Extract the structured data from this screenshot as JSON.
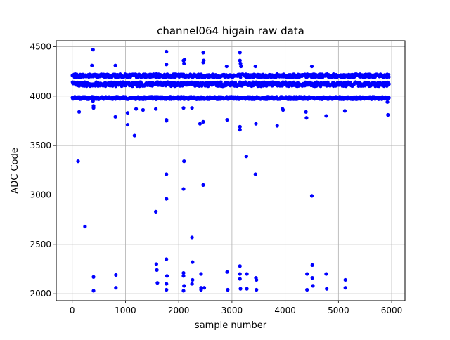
{
  "chart_data": {
    "type": "scatter",
    "title": "channel064 higain raw data",
    "xlabel": "sample number",
    "ylabel": "ADC Code",
    "xlim": [
      -300,
      6250
    ],
    "ylim": [
      1930,
      4560
    ],
    "xticks": [
      0,
      1000,
      2000,
      3000,
      4000,
      5000,
      6000
    ],
    "xtick_labels": [
      "0",
      "1000",
      "2000",
      "3000",
      "4000",
      "5000",
      "6000"
    ],
    "yticks": [
      2000,
      2500,
      3000,
      3500,
      4000,
      4500
    ],
    "ytick_labels": [
      "2000",
      "2500",
      "3000",
      "3500",
      "4000",
      "4500"
    ],
    "grid": true,
    "marker_color": "#0000ff",
    "bands": [
      {
        "center": 4205,
        "spread": 18,
        "x_range": [
          0,
          5950
        ]
      },
      {
        "center": 4120,
        "spread": 22,
        "x_range": [
          0,
          5950
        ]
      },
      {
        "center": 3980,
        "spread": 14,
        "x_range": [
          0,
          5950
        ]
      }
    ],
    "outliers": [
      {
        "x": 110,
        "y": 3340
      },
      {
        "x": 130,
        "y": 3840
      },
      {
        "x": 170,
        "y": 3970
      },
      {
        "x": 240,
        "y": 2680
      },
      {
        "x": 370,
        "y": 4310
      },
      {
        "x": 390,
        "y": 4470
      },
      {
        "x": 390,
        "y": 3950
      },
      {
        "x": 400,
        "y": 3900
      },
      {
        "x": 400,
        "y": 3880
      },
      {
        "x": 400,
        "y": 2170
      },
      {
        "x": 400,
        "y": 2030
      },
      {
        "x": 810,
        "y": 4310
      },
      {
        "x": 810,
        "y": 3790
      },
      {
        "x": 820,
        "y": 2190
      },
      {
        "x": 820,
        "y": 2060
      },
      {
        "x": 1040,
        "y": 3830
      },
      {
        "x": 1040,
        "y": 3710
      },
      {
        "x": 1170,
        "y": 3600
      },
      {
        "x": 1200,
        "y": 3870
      },
      {
        "x": 1330,
        "y": 3860
      },
      {
        "x": 1570,
        "y": 3870
      },
      {
        "x": 1570,
        "y": 2830
      },
      {
        "x": 1580,
        "y": 2300
      },
      {
        "x": 1590,
        "y": 2240
      },
      {
        "x": 1600,
        "y": 2110
      },
      {
        "x": 1770,
        "y": 4450
      },
      {
        "x": 1770,
        "y": 4320
      },
      {
        "x": 1770,
        "y": 3760
      },
      {
        "x": 1770,
        "y": 3750
      },
      {
        "x": 1770,
        "y": 3210
      },
      {
        "x": 1770,
        "y": 2960
      },
      {
        "x": 1770,
        "y": 2350
      },
      {
        "x": 1780,
        "y": 2180
      },
      {
        "x": 1770,
        "y": 2100
      },
      {
        "x": 1770,
        "y": 2040
      },
      {
        "x": 2090,
        "y": 4360
      },
      {
        "x": 2100,
        "y": 4330
      },
      {
        "x": 2110,
        "y": 4370
      },
      {
        "x": 2090,
        "y": 3880
      },
      {
        "x": 2100,
        "y": 3340
      },
      {
        "x": 2090,
        "y": 3060
      },
      {
        "x": 2090,
        "y": 2210
      },
      {
        "x": 2090,
        "y": 2180
      },
      {
        "x": 2100,
        "y": 2080
      },
      {
        "x": 2090,
        "y": 2030
      },
      {
        "x": 2250,
        "y": 3880
      },
      {
        "x": 2250,
        "y": 2570
      },
      {
        "x": 2260,
        "y": 2320
      },
      {
        "x": 2260,
        "y": 2140
      },
      {
        "x": 2250,
        "y": 2100
      },
      {
        "x": 2400,
        "y": 3720
      },
      {
        "x": 2420,
        "y": 2200
      },
      {
        "x": 2420,
        "y": 2060
      },
      {
        "x": 2420,
        "y": 2040
      },
      {
        "x": 2460,
        "y": 4440
      },
      {
        "x": 2460,
        "y": 4340
      },
      {
        "x": 2470,
        "y": 4360
      },
      {
        "x": 2460,
        "y": 3740
      },
      {
        "x": 2460,
        "y": 3100
      },
      {
        "x": 2480,
        "y": 2060
      },
      {
        "x": 2900,
        "y": 4300
      },
      {
        "x": 2910,
        "y": 3760
      },
      {
        "x": 2910,
        "y": 2220
      },
      {
        "x": 2920,
        "y": 2040
      },
      {
        "x": 3150,
        "y": 4440
      },
      {
        "x": 3150,
        "y": 4360
      },
      {
        "x": 3160,
        "y": 4330
      },
      {
        "x": 3170,
        "y": 4300
      },
      {
        "x": 3150,
        "y": 3690
      },
      {
        "x": 3150,
        "y": 3660
      },
      {
        "x": 3150,
        "y": 2280
      },
      {
        "x": 3150,
        "y": 2200
      },
      {
        "x": 3150,
        "y": 2150
      },
      {
        "x": 3160,
        "y": 2050
      },
      {
        "x": 3270,
        "y": 3390
      },
      {
        "x": 3280,
        "y": 2200
      },
      {
        "x": 3280,
        "y": 2050
      },
      {
        "x": 3440,
        "y": 3210
      },
      {
        "x": 3440,
        "y": 4300
      },
      {
        "x": 3450,
        "y": 3720
      },
      {
        "x": 3450,
        "y": 2160
      },
      {
        "x": 3460,
        "y": 2140
      },
      {
        "x": 3460,
        "y": 2040
      },
      {
        "x": 3850,
        "y": 3700
      },
      {
        "x": 3950,
        "y": 3870
      },
      {
        "x": 3960,
        "y": 3860
      },
      {
        "x": 4390,
        "y": 3840
      },
      {
        "x": 4400,
        "y": 3780
      },
      {
        "x": 4410,
        "y": 2200
      },
      {
        "x": 4410,
        "y": 2040
      },
      {
        "x": 4500,
        "y": 4300
      },
      {
        "x": 4500,
        "y": 2990
      },
      {
        "x": 4510,
        "y": 2290
      },
      {
        "x": 4510,
        "y": 2160
      },
      {
        "x": 4520,
        "y": 2080
      },
      {
        "x": 4770,
        "y": 3800
      },
      {
        "x": 4770,
        "y": 2200
      },
      {
        "x": 4780,
        "y": 2050
      },
      {
        "x": 5120,
        "y": 3850
      },
      {
        "x": 5130,
        "y": 2140
      },
      {
        "x": 5130,
        "y": 2060
      },
      {
        "x": 5930,
        "y": 3810
      },
      {
        "x": 5920,
        "y": 3940
      }
    ]
  }
}
